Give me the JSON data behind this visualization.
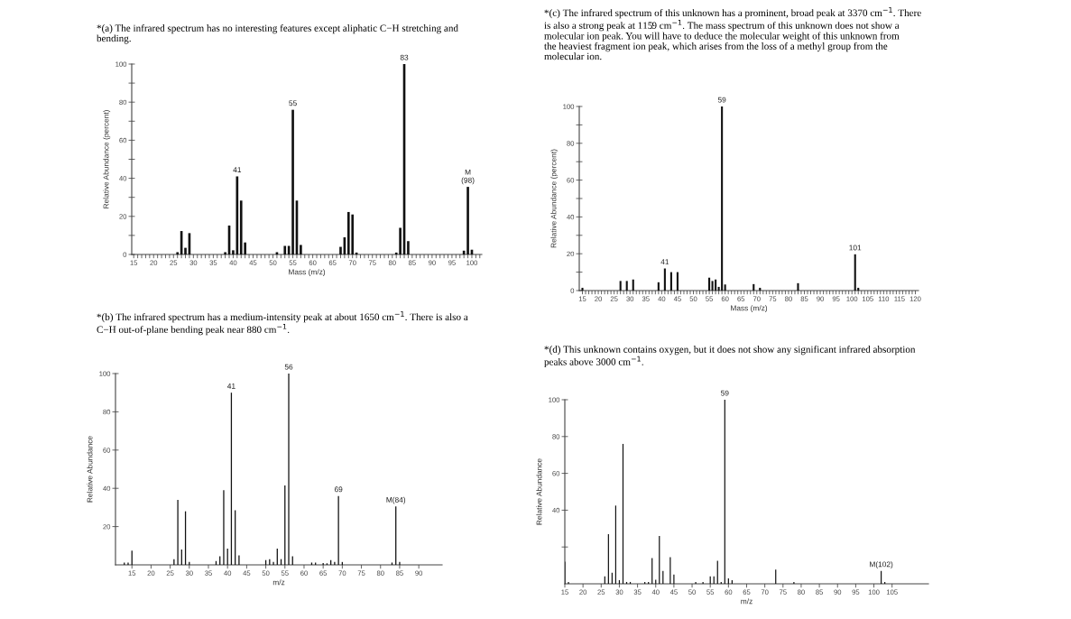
{
  "chart_data": [
    {
      "type": "bar",
      "title": "*(a) The infrared spectrum has no interesting features except aliphatic C−H stretching and\nbending.",
      "xlabel": "Mass (m/z)",
      "ylabel": "Relative Abundance (percent)",
      "color": "#111111",
      "x": [
        26,
        27,
        28,
        29,
        38,
        39,
        40,
        41,
        42,
        43,
        51,
        53,
        54,
        55,
        56,
        57,
        67,
        68,
        69,
        70,
        71,
        81,
        82,
        83,
        84,
        98,
        99,
        100
      ],
      "values": [
        1.2,
        12.3,
        3.5,
        11.2,
        1.2,
        15.2,
        2.2,
        41,
        28.3,
        6.3,
        1.2,
        4.5,
        4.5,
        76,
        28.3,
        5,
        4,
        9,
        22.3,
        21,
        1,
        1,
        14,
        100,
        7,
        2,
        35.5,
        2.5
      ],
      "xlim": [
        14.5,
        102.5
      ],
      "ylim": [
        0,
        100
      ],
      "xticks": [
        15,
        {
          "value": 16,
          "label": null
        },
        {
          "value": 17,
          "label": null
        },
        {
          "value": 18,
          "label": null
        },
        {
          "value": 19,
          "label": null
        },
        20,
        {
          "value": 21,
          "label": null
        },
        {
          "value": 22,
          "label": null
        },
        {
          "value": 23,
          "label": null
        },
        {
          "value": 24,
          "label": null
        },
        25,
        {
          "value": 26,
          "label": null
        },
        {
          "value": 27,
          "label": null
        },
        {
          "value": 28,
          "label": null
        },
        {
          "value": 29,
          "label": null
        },
        30,
        {
          "value": 31,
          "label": null
        },
        {
          "value": 32,
          "label": null
        },
        {
          "value": 33,
          "label": null
        },
        {
          "value": 34,
          "label": null
        },
        35,
        {
          "value": 36,
          "label": null
        },
        {
          "value": 37,
          "label": null
        },
        {
          "value": 38,
          "label": null
        },
        {
          "value": 39,
          "label": null
        },
        40,
        {
          "value": 41,
          "label": null
        },
        {
          "value": 42,
          "label": null
        },
        {
          "value": 43,
          "label": null
        },
        {
          "value": 44,
          "label": null
        },
        45,
        {
          "value": 46,
          "label": null
        },
        {
          "value": 47,
          "label": null
        },
        {
          "value": 48,
          "label": null
        },
        {
          "value": 49,
          "label": null
        },
        50,
        {
          "value": 51,
          "label": null
        },
        {
          "value": 52,
          "label": null
        },
        {
          "value": 53,
          "label": null
        },
        {
          "value": 54,
          "label": null
        },
        55,
        {
          "value": 56,
          "label": null
        },
        {
          "value": 57,
          "label": null
        },
        {
          "value": 58,
          "label": null
        },
        {
          "value": 59,
          "label": null
        },
        60,
        {
          "value": 61,
          "label": null
        },
        {
          "value": 62,
          "label": null
        },
        {
          "value": 63,
          "label": null
        },
        {
          "value": 64,
          "label": null
        },
        65,
        {
          "value": 66,
          "label": null
        },
        {
          "value": 67,
          "label": null
        },
        {
          "value": 68,
          "label": null
        },
        {
          "value": 69,
          "label": null
        },
        70,
        {
          "value": 71,
          "label": null
        },
        {
          "value": 72,
          "label": null
        },
        {
          "value": 73,
          "label": null
        },
        {
          "value": 74,
          "label": null
        },
        75,
        {
          "value": 76,
          "label": null
        },
        {
          "value": 77,
          "label": null
        },
        {
          "value": 78,
          "label": null
        },
        {
          "value": 79,
          "label": null
        },
        80,
        {
          "value": 81,
          "label": null
        },
        {
          "value": 82,
          "label": null
        },
        {
          "value": 83,
          "label": null
        },
        {
          "value": 84,
          "label": null
        },
        85,
        {
          "value": 86,
          "label": null
        },
        {
          "value": 87,
          "label": null
        },
        {
          "value": 88,
          "label": null
        },
        {
          "value": 89,
          "label": null
        },
        90,
        {
          "value": 91,
          "label": null
        },
        {
          "value": 92,
          "label": null
        },
        {
          "value": 93,
          "label": null
        },
        {
          "value": 94,
          "label": null
        },
        95,
        {
          "value": 96,
          "label": null
        },
        {
          "value": 97,
          "label": null
        },
        {
          "value": 98,
          "label": null
        },
        {
          "value": 99,
          "label": null
        },
        100,
        {
          "value": 101,
          "label": null
        },
        {
          "value": 102,
          "label": null
        }
      ],
      "yticks": [
        0,
        {
          "value": 10,
          "label": null
        },
        20,
        {
          "value": 30,
          "label": null
        },
        40,
        {
          "value": 50,
          "label": null
        },
        60,
        {
          "value": 70,
          "label": null
        },
        80,
        {
          "value": 90,
          "label": null
        },
        100
      ],
      "annotations": [
        {
          "text": "41",
          "x": 41,
          "y": 41
        },
        {
          "text": "55",
          "x": 55,
          "y": 76
        },
        {
          "text": "83",
          "x": 83,
          "y": 100
        },
        {
          "text": "M\n(98)",
          "x": 99,
          "y": 35.5
        }
      ]
    },
    {
      "type": "bar",
      "title": "*(c) The infrared spectrum of this unknown has a prominent, broad peak at 3370 cm$^{−1}$. There\nis also a strong peak at 1159 cm$^{−1}$. The mass spectrum of this unknown does not show a\nmolecular ion peak. You will have to deduce the molecular weight of this unknown from\nthe heaviest fragment ion peak, which arises from the loss of a methyl group from the\nmolecular ion.",
      "xlabel": "Mass (m/z)",
      "ylabel": "Relative Abundance (percent)",
      "color": "#111111",
      "x": [
        15,
        27,
        29,
        31,
        39,
        41,
        43,
        45,
        55,
        56,
        57,
        58,
        59,
        60,
        69,
        71,
        83,
        101,
        102
      ],
      "values": [
        1.5,
        5.2,
        5.2,
        6,
        4.5,
        12,
        10,
        10,
        7,
        5.2,
        6,
        2,
        100,
        3.3,
        3.5,
        1.5,
        4,
        19.7,
        1.5
      ],
      "xlim": [
        14,
        121
      ],
      "ylim": [
        0,
        100
      ],
      "xticks": [
        15,
        {
          "value": 16,
          "label": null
        },
        {
          "value": 17,
          "label": null
        },
        {
          "value": 18,
          "label": null
        },
        {
          "value": 19,
          "label": null
        },
        20,
        {
          "value": 21,
          "label": null
        },
        {
          "value": 22,
          "label": null
        },
        {
          "value": 23,
          "label": null
        },
        {
          "value": 24,
          "label": null
        },
        25,
        {
          "value": 26,
          "label": null
        },
        {
          "value": 27,
          "label": null
        },
        {
          "value": 28,
          "label": null
        },
        {
          "value": 29,
          "label": null
        },
        30,
        {
          "value": 31,
          "label": null
        },
        {
          "value": 32,
          "label": null
        },
        {
          "value": 33,
          "label": null
        },
        {
          "value": 34,
          "label": null
        },
        35,
        {
          "value": 36,
          "label": null
        },
        {
          "value": 37,
          "label": null
        },
        {
          "value": 38,
          "label": null
        },
        {
          "value": 39,
          "label": null
        },
        40,
        {
          "value": 41,
          "label": null
        },
        {
          "value": 42,
          "label": null
        },
        {
          "value": 43,
          "label": null
        },
        {
          "value": 44,
          "label": null
        },
        45,
        {
          "value": 46,
          "label": null
        },
        {
          "value": 47,
          "label": null
        },
        {
          "value": 48,
          "label": null
        },
        {
          "value": 49,
          "label": null
        },
        50,
        {
          "value": 51,
          "label": null
        },
        {
          "value": 52,
          "label": null
        },
        {
          "value": 53,
          "label": null
        },
        {
          "value": 54,
          "label": null
        },
        55,
        {
          "value": 56,
          "label": null
        },
        {
          "value": 57,
          "label": null
        },
        {
          "value": 58,
          "label": null
        },
        {
          "value": 59,
          "label": null
        },
        60,
        {
          "value": 61,
          "label": null
        },
        {
          "value": 62,
          "label": null
        },
        {
          "value": 63,
          "label": null
        },
        {
          "value": 64,
          "label": null
        },
        65,
        {
          "value": 66,
          "label": null
        },
        {
          "value": 67,
          "label": null
        },
        {
          "value": 68,
          "label": null
        },
        {
          "value": 69,
          "label": null
        },
        70,
        {
          "value": 71,
          "label": null
        },
        {
          "value": 72,
          "label": null
        },
        {
          "value": 73,
          "label": null
        },
        {
          "value": 74,
          "label": null
        },
        75,
        {
          "value": 76,
          "label": null
        },
        {
          "value": 77,
          "label": null
        },
        {
          "value": 78,
          "label": null
        },
        {
          "value": 79,
          "label": null
        },
        80,
        {
          "value": 81,
          "label": null
        },
        {
          "value": 82,
          "label": null
        },
        {
          "value": 83,
          "label": null
        },
        {
          "value": 84,
          "label": null
        },
        85,
        {
          "value": 86,
          "label": null
        },
        {
          "value": 87,
          "label": null
        },
        {
          "value": 88,
          "label": null
        },
        {
          "value": 89,
          "label": null
        },
        90,
        {
          "value": 91,
          "label": null
        },
        {
          "value": 92,
          "label": null
        },
        {
          "value": 93,
          "label": null
        },
        {
          "value": 94,
          "label": null
        },
        95,
        {
          "value": 96,
          "label": null
        },
        {
          "value": 97,
          "label": null
        },
        {
          "value": 98,
          "label": null
        },
        {
          "value": 99,
          "label": null
        },
        100,
        {
          "value": 101,
          "label": null
        },
        {
          "value": 102,
          "label": null
        },
        {
          "value": 103,
          "label": null
        },
        {
          "value": 104,
          "label": null
        },
        105,
        {
          "value": 106,
          "label": null
        },
        {
          "value": 107,
          "label": null
        },
        {
          "value": 108,
          "label": null
        },
        {
          "value": 109,
          "label": null
        },
        110,
        {
          "value": 111,
          "label": null
        },
        {
          "value": 112,
          "label": null
        },
        {
          "value": 113,
          "label": null
        },
        {
          "value": 114,
          "label": null
        },
        115,
        {
          "value": 116,
          "label": null
        },
        {
          "value": 117,
          "label": null
        },
        {
          "value": 118,
          "label": null
        },
        {
          "value": 119,
          "label": null
        },
        120
      ],
      "yticks": [
        0,
        {
          "value": 10,
          "label": null
        },
        20,
        {
          "value": 30,
          "label": null
        },
        40,
        {
          "value": 50,
          "label": null
        },
        60,
        {
          "value": 70,
          "label": null
        },
        80,
        {
          "value": 90,
          "label": null
        },
        100
      ],
      "annotations": [
        {
          "text": "41",
          "x": 41,
          "y": 12
        },
        {
          "text": "59",
          "x": 59,
          "y": 100
        },
        {
          "text": "101",
          "x": 101,
          "y": 19.7
        }
      ]
    },
    {
      "type": "bar",
      "title": "*(b) The infrared spectrum has a medium-intensity peak at about 1650 cm$^{−1}$. There is also a\nC−H out-of-plane bending peak near 880 cm$^{−1}$.",
      "xlabel": "m/z",
      "ylabel": "Relative Abundance",
      "color": "#111111",
      "x": [
        13,
        14,
        15,
        26,
        27,
        28,
        29,
        30,
        37,
        38,
        39,
        40,
        41,
        42,
        43,
        50,
        51,
        52,
        53,
        54,
        55,
        56,
        57,
        62,
        63,
        65,
        66,
        67,
        68,
        69,
        70,
        83,
        84,
        85
      ],
      "values": [
        1.2,
        1.2,
        7.4,
        3,
        34,
        8,
        28,
        1.5,
        2,
        4.5,
        39,
        8.5,
        90,
        28.5,
        5,
        2.5,
        3,
        1.5,
        8.5,
        3,
        41.5,
        100,
        4.5,
        1.2,
        1.2,
        1,
        0.8,
        2.5,
        1.5,
        36,
        1.5,
        1.2,
        30.5,
        1.5
      ],
      "xlim": [
        10.7,
        96.1
      ],
      "ylim": [
        0,
        100
      ],
      "xticks": [
        15,
        20,
        25,
        30,
        35,
        40,
        45,
        50,
        55,
        60,
        65,
        70,
        75,
        80,
        85,
        90
      ],
      "yticks": [
        20,
        40,
        60,
        80,
        100
      ],
      "annotations": [
        {
          "text": "41",
          "x": 41,
          "y": 90
        },
        {
          "text": "56",
          "x": 56,
          "y": 100
        },
        {
          "text": "69",
          "x": 69,
          "y": 36
        },
        {
          "text": "M(84)",
          "x": 84,
          "y": 30.5
        }
      ]
    },
    {
      "type": "bar",
      "title": "*(d) This unknown contains oxygen, but it does not show any significant infrared absorption\npeaks above 3000 cm$^{−1}$.",
      "xlabel": "m/z",
      "ylabel": "Relative Abundance",
      "color": "#111111",
      "x": [
        15,
        16,
        26,
        27,
        28,
        29,
        30,
        31,
        32,
        33,
        37,
        38,
        39,
        40,
        41,
        42,
        44,
        45,
        51,
        53,
        55,
        56,
        57,
        58,
        59,
        60,
        61,
        73,
        78,
        102,
        103
      ],
      "values": [
        12,
        1,
        4,
        27,
        6,
        42.5,
        2,
        76,
        1,
        1,
        1,
        1,
        14,
        2.2,
        26,
        7,
        14.5,
        5,
        1,
        1,
        4,
        4,
        12.5,
        1,
        100,
        3,
        2,
        7.7,
        1,
        7,
        1
      ],
      "xlim": [
        15,
        115
      ],
      "ylim": [
        0,
        100
      ],
      "xticks": [
        15,
        20,
        25,
        30,
        35,
        40,
        45,
        50,
        55,
        60,
        65,
        70,
        75,
        80,
        85,
        90,
        95,
        100,
        105
      ],
      "yticks": [
        {
          "value": 20,
          "label": null
        },
        40,
        60,
        80,
        100
      ],
      "annotations": [
        {
          "text": "59",
          "x": 59,
          "y": 100
        },
        {
          "text": "M(102)",
          "x": 102,
          "y": 7
        }
      ]
    }
  ]
}
